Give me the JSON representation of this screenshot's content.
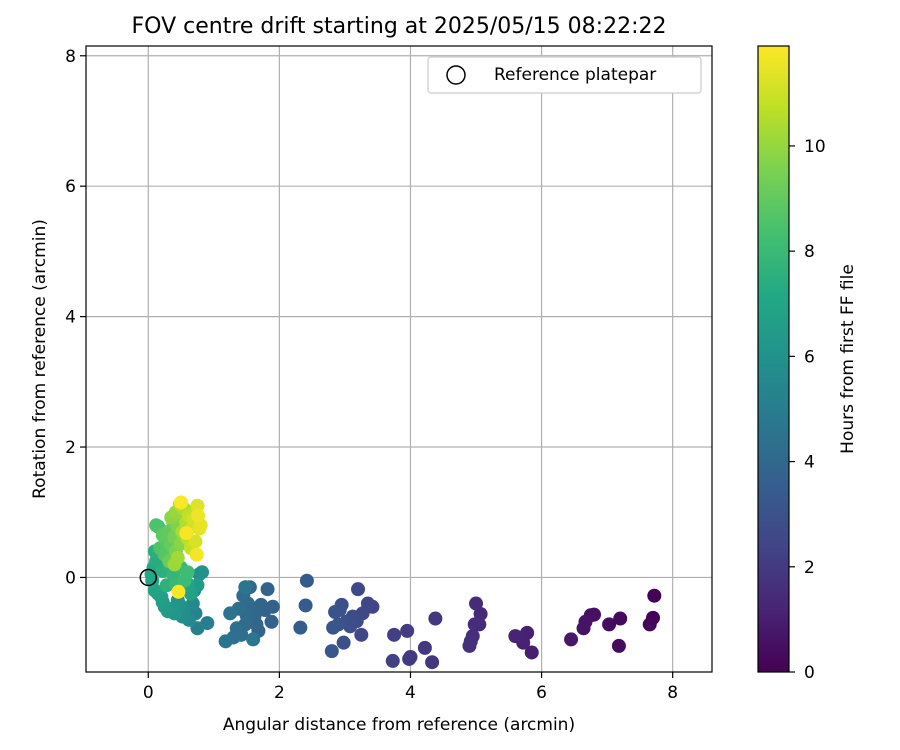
{
  "chart_data": {
    "type": "scatter",
    "title": "FOV centre drift starting at 2025/05/15 08:22:22",
    "xlabel": "Angular distance from reference (arcmin)",
    "ylabel": "Rotation from reference (arcmin)",
    "xlim": [
      -0.95,
      8.6
    ],
    "ylim": [
      -1.45,
      8.15
    ],
    "xticks": [
      0,
      2,
      4,
      6,
      8
    ],
    "yticks": [
      0,
      2,
      4,
      6,
      8
    ],
    "xtick_labels": [
      "0",
      "2",
      "4",
      "6",
      "8"
    ],
    "ytick_labels": [
      "0",
      "2",
      "4",
      "6",
      "8"
    ],
    "grid": true,
    "legend": {
      "placement": "top-right",
      "entries": [
        "Reference platepar"
      ]
    },
    "reference_point": {
      "x": 0,
      "y": 0
    },
    "colorbar": {
      "label": "Hours from first FF file",
      "colormap": "viridis",
      "range": [
        0,
        11.9
      ],
      "ticks": [
        0,
        2,
        4,
        6,
        8,
        10
      ],
      "tick_labels": [
        "0",
        "2",
        "4",
        "6",
        "8",
        "10"
      ]
    },
    "points": [
      [
        7.72,
        -0.28,
        0.05
      ],
      [
        7.7,
        -0.62,
        0.1
      ],
      [
        7.65,
        -0.72,
        0.2
      ],
      [
        7.2,
        -0.63,
        0.3
      ],
      [
        7.18,
        -1.05,
        0.35
      ],
      [
        7.03,
        -0.72,
        0.4
      ],
      [
        6.8,
        -0.57,
        0.5
      ],
      [
        6.75,
        -0.58,
        0.55
      ],
      [
        6.67,
        -0.68,
        0.6
      ],
      [
        6.64,
        -0.78,
        0.65
      ],
      [
        6.45,
        -0.95,
        0.75
      ],
      [
        5.85,
        -1.15,
        1.0
      ],
      [
        5.78,
        -0.85,
        1.05
      ],
      [
        5.72,
        -1.0,
        1.1
      ],
      [
        5.7,
        -0.92,
        1.15
      ],
      [
        5.6,
        -0.9,
        1.2
      ],
      [
        5.07,
        -0.56,
        1.35
      ],
      [
        5.05,
        -0.72,
        1.4
      ],
      [
        5.0,
        -0.4,
        1.45
      ],
      [
        4.98,
        -0.72,
        1.5
      ],
      [
        4.95,
        -0.9,
        1.55
      ],
      [
        4.92,
        -0.98,
        1.6
      ],
      [
        4.9,
        -1.05,
        1.65
      ],
      [
        4.38,
        -0.63,
        1.85
      ],
      [
        4.33,
        -1.3,
        1.9
      ],
      [
        4.22,
        -1.08,
        1.95
      ],
      [
        4.0,
        -1.22,
        2.0
      ],
      [
        3.98,
        -1.25,
        2.05
      ],
      [
        3.95,
        -0.82,
        2.1
      ],
      [
        3.75,
        -0.88,
        2.2
      ],
      [
        3.73,
        -1.28,
        2.25
      ],
      [
        3.42,
        -0.45,
        2.4
      ],
      [
        3.35,
        -0.4,
        2.5
      ],
      [
        3.27,
        -0.55,
        2.55
      ],
      [
        3.25,
        -0.88,
        2.6
      ],
      [
        3.2,
        -0.18,
        2.65
      ],
      [
        3.18,
        -0.67,
        2.7
      ],
      [
        3.12,
        -0.6,
        2.75
      ],
      [
        3.08,
        -0.75,
        2.8
      ],
      [
        3.02,
        -0.68,
        2.85
      ],
      [
        2.98,
        -1.0,
        2.9
      ],
      [
        2.95,
        -0.42,
        2.95
      ],
      [
        2.92,
        -0.5,
        3.0
      ],
      [
        2.9,
        -0.72,
        3.05
      ],
      [
        2.85,
        -0.53,
        3.1
      ],
      [
        2.82,
        -0.77,
        3.15
      ],
      [
        2.8,
        -1.13,
        3.2
      ],
      [
        2.42,
        -0.05,
        3.35
      ],
      [
        2.4,
        -0.43,
        3.4
      ],
      [
        2.32,
        -0.77,
        3.45
      ],
      [
        1.9,
        -0.45,
        3.6
      ],
      [
        1.88,
        -0.68,
        3.65
      ],
      [
        1.82,
        -0.18,
        3.7
      ],
      [
        1.78,
        -0.5,
        3.75
      ],
      [
        1.72,
        -0.42,
        3.8
      ],
      [
        1.68,
        -0.82,
        3.85
      ],
      [
        1.65,
        -0.72,
        3.9
      ],
      [
        1.62,
        -0.6,
        3.95
      ],
      [
        1.58,
        -0.52,
        4.0
      ],
      [
        1.55,
        -0.15,
        4.05
      ],
      [
        1.52,
        -0.4,
        4.1
      ],
      [
        1.5,
        -0.58,
        4.15
      ],
      [
        1.48,
        -0.72,
        4.2
      ],
      [
        1.45,
        -0.28,
        4.25
      ],
      [
        1.42,
        -0.88,
        4.3
      ],
      [
        1.38,
        -0.48,
        4.35
      ],
      [
        1.35,
        -0.78,
        4.4
      ],
      [
        1.3,
        -0.92,
        4.45
      ],
      [
        1.25,
        -0.55,
        4.5
      ],
      [
        1.18,
        -0.98,
        4.55
      ],
      [
        1.6,
        -0.95,
        4.6
      ],
      [
        1.48,
        -0.15,
        4.65
      ],
      [
        0.9,
        -0.7,
        5.0
      ],
      [
        0.75,
        -0.78,
        5.2
      ],
      [
        0.72,
        -0.55,
        5.3
      ],
      [
        0.68,
        -0.4,
        5.5
      ],
      [
        0.62,
        -0.65,
        5.6
      ],
      [
        0.55,
        -0.5,
        5.8
      ],
      [
        0.52,
        -0.6,
        5.9
      ],
      [
        0.48,
        -0.42,
        6.0
      ],
      [
        0.45,
        -0.35,
        6.1
      ],
      [
        0.4,
        -0.55,
        6.2
      ],
      [
        0.35,
        -0.48,
        6.3
      ],
      [
        0.3,
        -0.52,
        6.4
      ],
      [
        0.25,
        -0.45,
        6.5
      ],
      [
        0.22,
        -0.38,
        6.6
      ],
      [
        0.2,
        -0.3,
        6.7
      ],
      [
        0.15,
        -0.25,
        6.8
      ],
      [
        0.1,
        -0.2,
        6.9
      ],
      [
        0.06,
        -0.05,
        7.0
      ],
      [
        0.05,
        0.05,
        7.1
      ],
      [
        0.08,
        0.15,
        7.2
      ],
      [
        0.12,
        0.25,
        7.3
      ],
      [
        0.18,
        0.3,
        7.4
      ],
      [
        0.22,
        0.1,
        7.5
      ],
      [
        0.28,
        -0.12,
        7.6
      ],
      [
        0.32,
        0.2,
        7.7
      ],
      [
        0.38,
        0.05,
        7.8
      ],
      [
        0.42,
        -0.1,
        7.9
      ],
      [
        0.5,
        0.15,
        8.0
      ],
      [
        0.55,
        -0.05,
        8.1
      ],
      [
        0.6,
        0.08,
        8.2
      ],
      [
        0.7,
        -0.2,
        5.4
      ],
      [
        0.78,
        0.05,
        5.7
      ],
      [
        0.82,
        0.08,
        6.0
      ],
      [
        0.75,
        -0.12,
        6.4
      ],
      [
        0.65,
        -0.25,
        6.8
      ],
      [
        0.6,
        -0.1,
        7.0
      ],
      [
        0.1,
        0.4,
        7.5
      ],
      [
        0.15,
        0.78,
        8.0
      ],
      [
        0.12,
        0.8,
        8.5
      ],
      [
        0.18,
        0.45,
        8.6
      ],
      [
        0.25,
        0.35,
        8.7
      ],
      [
        0.28,
        0.55,
        8.8
      ],
      [
        0.22,
        0.65,
        8.9
      ],
      [
        0.3,
        0.7,
        9.0
      ],
      [
        0.35,
        0.5,
        9.1
      ],
      [
        0.32,
        0.25,
        9.2
      ],
      [
        0.38,
        0.85,
        9.3
      ],
      [
        0.4,
        0.62,
        9.4
      ],
      [
        0.42,
        0.4,
        9.5
      ],
      [
        0.45,
        0.78,
        9.6
      ],
      [
        0.48,
        0.95,
        9.7
      ],
      [
        0.5,
        0.52,
        9.8
      ],
      [
        0.35,
        0.92,
        9.9
      ],
      [
        0.42,
        1.0,
        10.0
      ],
      [
        0.4,
        0.2,
        10.1
      ],
      [
        0.45,
        0.3,
        10.2
      ],
      [
        0.52,
        0.7,
        10.3
      ],
      [
        0.55,
        1.05,
        10.4
      ],
      [
        0.58,
        0.85,
        10.5
      ],
      [
        0.48,
        1.12,
        10.6
      ],
      [
        0.6,
        0.6,
        10.7
      ],
      [
        0.62,
        0.95,
        10.8
      ],
      [
        0.65,
        0.45,
        10.9
      ],
      [
        0.68,
        0.78,
        11.0
      ],
      [
        0.7,
        0.9,
        11.1
      ],
      [
        0.72,
        0.55,
        11.2
      ],
      [
        0.75,
        1.1,
        11.3
      ],
      [
        0.78,
        0.75,
        11.4
      ],
      [
        0.8,
        0.8,
        11.5
      ],
      [
        0.76,
        0.95,
        11.6
      ],
      [
        0.74,
        0.35,
        11.7
      ],
      [
        0.58,
        0.68,
        11.8
      ],
      [
        0.5,
        1.15,
        11.85
      ],
      [
        0.46,
        -0.22,
        11.9
      ]
    ]
  }
}
